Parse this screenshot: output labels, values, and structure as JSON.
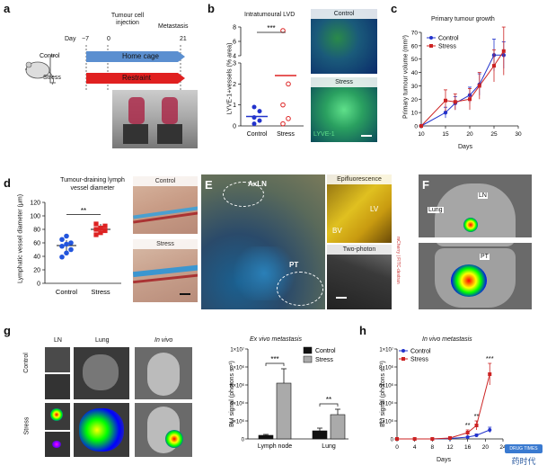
{
  "panels": {
    "a": {
      "label": "a",
      "tumour_cell_injection": "Tumour cell injection",
      "metastasis": "Metastasis",
      "day_label": "Day",
      "ticks": [
        "−7",
        "0",
        "21"
      ],
      "groups": [
        "Control",
        "Stress"
      ],
      "bars": [
        "Home cage",
        "Restraint"
      ],
      "colors": {
        "home": "#5b8fd0",
        "restraint": "#e02020"
      }
    },
    "b": {
      "label": "b",
      "title": "Intratumoural LVD",
      "ylabel": "LYVE-1+vessels (% area)",
      "sig": "***",
      "img_control": "Control",
      "img_stress": "Stress",
      "img_marker": "LYVE-1"
    },
    "c": {
      "label": "c",
      "title": "Primary tumour growth",
      "ylabel": "Primary tumour volume (mm³)",
      "xlabel": "Days",
      "legend": [
        "Control",
        "Stress"
      ]
    },
    "d": {
      "label": "d",
      "title": "Tumour-draining lymph vessel diameter",
      "ylabel": "Lymphatic vessel diameter (μm)",
      "sig": "**",
      "img_control": "Control",
      "img_stress": "Stress"
    },
    "e": {
      "label": "E",
      "axln": "AxLN",
      "pt": "PT",
      "epi": "Epifluorescence",
      "lv": "LV",
      "bv": "BV",
      "two_photon": "Two-photon",
      "side": "mCherry | FITC-dextran"
    },
    "f": {
      "label": "F",
      "lung": "Lung",
      "ln": "LN",
      "pt": "PT"
    },
    "g": {
      "label": "g",
      "cols": [
        "LN",
        "Lung",
        "In vivo"
      ],
      "rows": [
        "Control",
        "Stress"
      ],
      "chart_title": "Ex vivo metastasis",
      "ylabel": "BLI signal (photons s⁻¹)"
    },
    "h": {
      "label": "h",
      "title": "In vivo metastasis",
      "ylabel": "BLI signal (photons s⁻¹)",
      "xlabel": "Days",
      "legend": [
        "Control",
        "Stress"
      ]
    }
  },
  "watermark": {
    "top": "DRUG TIMES",
    "bottom": "药时代"
  },
  "chart_data": [
    {
      "id": "b",
      "type": "scatter",
      "title": "Intratumoural LVD",
      "ylabel": "LYVE-1+vessels (% area)",
      "categories": [
        "Control",
        "Stress"
      ],
      "series": [
        {
          "name": "Control",
          "values": [
            0.1,
            0.25,
            0.4,
            0.7,
            0.9
          ],
          "mean": 0.45
        },
        {
          "name": "Stress",
          "values": [
            0.1,
            0.35,
            1.0,
            2.0,
            7.5
          ],
          "mean": 2.4
        }
      ],
      "yticks": [
        0,
        1,
        2,
        3,
        4,
        6,
        8
      ],
      "ylim": [
        0,
        8
      ],
      "broken_axis": [
        3,
        4
      ]
    },
    {
      "id": "c",
      "type": "line",
      "title": "Primary tumour growth",
      "xlabel": "Days",
      "ylabel": "Primary tumour volume (mm³)",
      "xticks": [
        10,
        15,
        20,
        25,
        30
      ],
      "yticks": [
        0,
        10,
        20,
        30,
        40,
        50,
        60,
        70
      ],
      "xlim": [
        10,
        30
      ],
      "ylim": [
        0,
        70
      ],
      "series": [
        {
          "name": "Control",
          "color": "#2233cc",
          "x": [
            10,
            15,
            17,
            20,
            22,
            25,
            27
          ],
          "y": [
            0,
            10,
            17,
            23,
            31,
            53,
            53
          ],
          "err": [
            0,
            4,
            5,
            6,
            8,
            12,
            10
          ]
        },
        {
          "name": "Stress",
          "color": "#cc2222",
          "x": [
            10,
            15,
            17,
            20,
            22,
            25,
            27
          ],
          "y": [
            0,
            19,
            18,
            20,
            30,
            45,
            56
          ],
          "err": [
            0,
            8,
            6,
            8,
            10,
            12,
            18
          ]
        }
      ]
    },
    {
      "id": "d",
      "type": "scatter",
      "title": "Tumour-draining lymph vessel diameter",
      "ylabel": "Lymphatic vessel diameter (μm)",
      "categories": [
        "Control",
        "Stress"
      ],
      "yticks": [
        0,
        20,
        40,
        60,
        80,
        100,
        120
      ],
      "ylim": [
        0,
        120
      ],
      "series": [
        {
          "name": "Control",
          "color": "#2255dd",
          "values": [
            39,
            45,
            50,
            55,
            58,
            60,
            65,
            70
          ],
          "mean": 56
        },
        {
          "name": "Stress",
          "color": "#dd2222",
          "values": [
            72,
            75,
            78,
            80,
            82,
            85,
            88
          ],
          "mean": 80
        }
      ],
      "significance": "**"
    },
    {
      "id": "g",
      "type": "bar",
      "title": "Ex vivo metastasis",
      "ylabel": "BLI signal (photons s⁻¹)",
      "categories": [
        "Lymph node",
        "Lung"
      ],
      "ylim": [
        0,
        10000000
      ],
      "ytick_labels": [
        "0",
        "2×10⁶",
        "4×10⁶",
        "6×10⁶",
        "8×10⁶",
        "1×10⁷"
      ],
      "series": [
        {
          "name": "Control",
          "color": "#111111",
          "values": [
            400000,
            900000
          ],
          "err": [
            100000,
            300000
          ]
        },
        {
          "name": "Stress",
          "color": "#aaaaaa",
          "values": [
            6200000,
            2700000
          ],
          "err": [
            1600000,
            600000
          ]
        }
      ],
      "significance": [
        "***",
        "**"
      ]
    },
    {
      "id": "h",
      "type": "line",
      "title": "In vivo metastasis",
      "xlabel": "Days",
      "ylabel": "BLI signal (photons s⁻¹)",
      "xticks": [
        0,
        4,
        8,
        12,
        16,
        20,
        24
      ],
      "xlim": [
        0,
        24
      ],
      "ylim": [
        0,
        10000000
      ],
      "ytick_labels": [
        "0",
        "2×10⁶",
        "4×10⁶",
        "6×10⁶",
        "8×10⁶",
        "1×10⁷"
      ],
      "series": [
        {
          "name": "Control",
          "color": "#2233cc",
          "x": [
            0,
            4,
            8,
            12,
            16,
            18,
            21
          ],
          "y": [
            0,
            0,
            0,
            50000,
            200000,
            400000,
            1000000
          ],
          "err": [
            0,
            0,
            0,
            20000,
            80000,
            150000,
            300000
          ]
        },
        {
          "name": "Stress",
          "color": "#cc2222",
          "x": [
            0,
            4,
            8,
            12,
            16,
            18,
            21
          ],
          "y": [
            0,
            0,
            0,
            100000,
            700000,
            1500000,
            7200000
          ],
          "err": [
            0,
            0,
            0,
            40000,
            300000,
            500000,
            1200000
          ]
        }
      ],
      "significance": [
        "**",
        "**",
        "***"
      ]
    }
  ]
}
